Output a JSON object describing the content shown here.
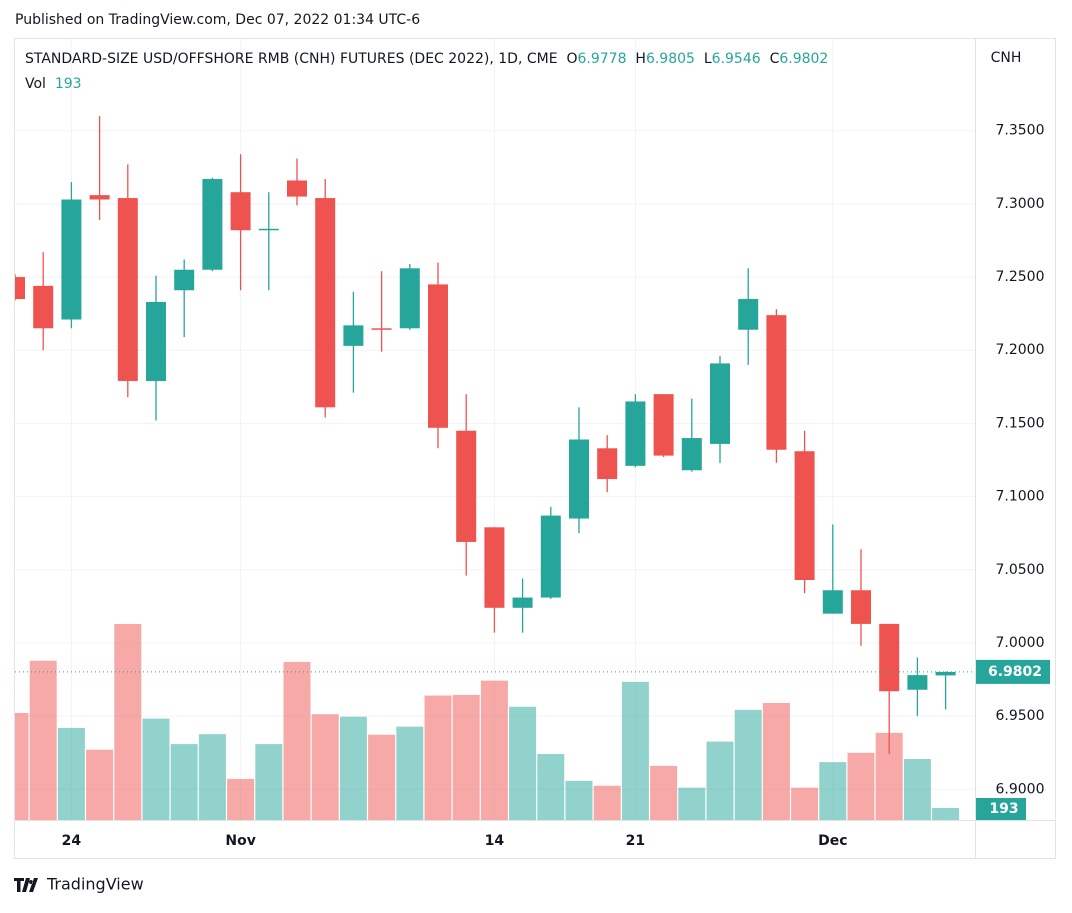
{
  "chart_data": {
    "type": "candlestick",
    "published": "Published on TradingView.com, Dec 07, 2022 01:34 UTC-6",
    "title": "STANDARD-SIZE USD/OFFSHORE RMB (CNH) FUTURES (DEC 2022), 1D, CME",
    "ohlc_keys": [
      "O",
      "H",
      "L",
      "C"
    ],
    "volume_label": "Vol",
    "y_axis_label": "CNH",
    "brand": "TradingView",
    "categories": [
      null,
      null,
      "24",
      null,
      null,
      null,
      null,
      null,
      "Nov",
      null,
      null,
      null,
      null,
      null,
      null,
      null,
      null,
      "14",
      null,
      null,
      null,
      null,
      "21",
      null,
      null,
      null,
      null,
      null,
      null,
      "Dec",
      null,
      null,
      null,
      null
    ],
    "open": [
      7.25,
      7.244,
      7.221,
      7.306,
      7.304,
      7.179,
      7.241,
      7.255,
      7.308,
      7.282,
      7.316,
      7.304,
      7.203,
      7.215,
      7.215,
      7.245,
      7.145,
      7.079,
      7.024,
      7.031,
      7.085,
      7.133,
      7.121,
      7.17,
      7.118,
      7.136,
      7.214,
      7.224,
      7.131,
      7.02,
      7.036,
      7.013,
      6.968,
      6.9778
    ],
    "high": [
      7.252,
      7.267,
      7.315,
      7.36,
      7.327,
      7.251,
      7.262,
      7.318,
      7.334,
      7.308,
      7.331,
      7.317,
      7.24,
      7.254,
      7.259,
      7.26,
      7.17,
      7.079,
      7.044,
      7.093,
      7.161,
      7.142,
      7.17,
      7.17,
      7.167,
      7.196,
      7.256,
      7.228,
      7.145,
      7.081,
      7.064,
      7.013,
      6.99,
      6.9805
    ],
    "low": [
      7.234,
      7.2,
      7.215,
      7.289,
      7.168,
      7.152,
      7.209,
      7.254,
      7.241,
      7.241,
      7.299,
      7.154,
      7.171,
      7.199,
      7.214,
      7.133,
      7.046,
      7.007,
      7.007,
      7.03,
      7.075,
      7.103,
      7.12,
      7.127,
      7.117,
      7.123,
      7.19,
      7.123,
      7.034,
      7.02,
      6.998,
      6.924,
      6.95,
      6.9546
    ],
    "close": [
      7.235,
      7.215,
      7.303,
      7.303,
      7.179,
      7.233,
      7.255,
      7.317,
      7.282,
      7.283,
      7.305,
      7.161,
      7.217,
      7.214,
      7.256,
      7.147,
      7.069,
      7.024,
      7.031,
      7.087,
      7.139,
      7.112,
      7.165,
      7.128,
      7.14,
      7.191,
      7.235,
      7.132,
      7.043,
      7.036,
      7.013,
      6.967,
      6.978,
      6.9802
    ],
    "volume": [
      1720,
      2560,
      1480,
      1130,
      3150,
      1630,
      1220,
      1380,
      660,
      1220,
      2540,
      1700,
      1660,
      1370,
      1500,
      2000,
      2010,
      2240,
      1820,
      1060,
      630,
      550,
      2220,
      870,
      520,
      1260,
      1770,
      1880,
      520,
      930,
      1080,
      1400,
      980,
      193
    ],
    "up_color": "#26a69a",
    "down_color": "#ef5350",
    "ylim": [
      6.879,
      7.412
    ],
    "yticks": [
      {
        "value": 6.9,
        "label": "6.9000"
      },
      {
        "value": 6.95,
        "label": "6.9500"
      },
      {
        "value": 7.0,
        "label": "7.0000"
      },
      {
        "value": 7.05,
        "label": "7.0500"
      },
      {
        "value": 7.1,
        "label": "7.1000"
      },
      {
        "value": 7.15,
        "label": "7.1500"
      },
      {
        "value": 7.2,
        "label": "7.2000"
      },
      {
        "value": 7.25,
        "label": "7.2500"
      },
      {
        "value": 7.3,
        "label": "7.3000"
      },
      {
        "value": 7.35,
        "label": "7.3500"
      }
    ],
    "grid": true
  }
}
